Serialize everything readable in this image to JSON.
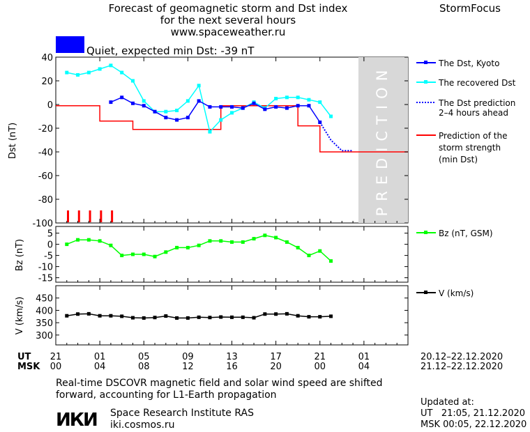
{
  "header": {
    "title_line1": "Forecast of geomagnetic storm and Dst index",
    "title_line2": "for the next several hours",
    "url": "www.spaceweather.ru",
    "brand": "StormFocus"
  },
  "status": {
    "label": "Quiet, expected min Dst: -39 nT",
    "color": "#0000ff"
  },
  "colors": {
    "dst_kyoto": "#0000ff",
    "dst_recovered": "#00ffff",
    "dst_prediction": "#0000ff",
    "storm_strength": "#ff0000",
    "bz": "#00ff00",
    "v": "#000000",
    "prediction_band": "#d8d8d8",
    "tick_marks": "#ff0000"
  },
  "prediction_label": "PREDICTION",
  "time_axis": {
    "ut_label": "UT",
    "msk_label": "MSK",
    "ut_ticks": [
      "21",
      "01",
      "05",
      "09",
      "13",
      "17",
      "21",
      "01"
    ],
    "msk_ticks": [
      "00",
      "04",
      "08",
      "12",
      "16",
      "20",
      "00",
      "04"
    ],
    "ut_range": "20.12–22.12.2020",
    "msk_range": "21.12–22.12.2020"
  },
  "chart_data": [
    {
      "type": "line",
      "ylabel": "Dst (nT)",
      "ylim": [
        -100,
        40
      ],
      "yticks": [
        40,
        20,
        0,
        -20,
        -40,
        -60,
        -80,
        -100
      ],
      "x_hours_from_start": [
        0,
        32
      ],
      "series": [
        {
          "name": "The Dst, Kyoto",
          "x": [
            5,
            6,
            7,
            8,
            9,
            10,
            11,
            12,
            13,
            14,
            15,
            16,
            17,
            18,
            19,
            20,
            21,
            22,
            23,
            24
          ],
          "y": [
            2,
            6,
            1,
            -1,
            -6,
            -11,
            -13,
            -11,
            3,
            -2,
            -2,
            -2,
            -3,
            1,
            -4,
            -2,
            -3,
            -1,
            -1,
            -15
          ]
        },
        {
          "name": "The recovered Dst",
          "x": [
            1,
            2,
            3,
            4,
            5,
            6,
            7,
            8,
            9,
            10,
            11,
            12,
            13,
            14,
            15,
            16,
            17,
            18,
            19,
            20,
            21,
            22,
            23,
            24,
            25
          ],
          "y": [
            27,
            25,
            27,
            30,
            33,
            27,
            20,
            3,
            -6,
            -6,
            -5,
            3,
            16,
            -23,
            -13,
            -7,
            -3,
            2,
            -3,
            5,
            6,
            6,
            4,
            2,
            -10
          ]
        },
        {
          "name": "The Dst prediction 2–4 hours ahead",
          "x": [
            24,
            25,
            26,
            27
          ],
          "y": [
            -15,
            -30,
            -39,
            -39
          ]
        },
        {
          "name": "Prediction of the storm strength (min Dst)",
          "x": [
            0,
            4,
            4,
            7,
            7,
            8,
            8,
            15,
            15,
            21,
            21,
            22,
            22,
            24,
            24,
            28,
            28,
            32
          ],
          "y": [
            -1,
            -1,
            -14,
            -14,
            -21,
            -21,
            -21,
            -21,
            -1,
            -1,
            -1,
            -1,
            -18,
            -18,
            -40,
            -40,
            -40,
            -40
          ]
        }
      ],
      "storm_marks_x": [
        0,
        1,
        2,
        3,
        4
      ]
    },
    {
      "type": "line",
      "ylabel": "Bz (nT)",
      "ylim": [
        -17,
        8
      ],
      "yticks": [
        5,
        0,
        -5,
        -10,
        -15
      ],
      "series": [
        {
          "name": "Bz (nT, GSM)",
          "x": [
            1,
            2,
            3,
            4,
            5,
            6,
            7,
            8,
            9,
            10,
            11,
            12,
            13,
            14,
            15,
            16,
            17,
            18,
            19,
            20,
            21,
            22,
            23,
            24,
            25
          ],
          "y": [
            0,
            2,
            2,
            1.5,
            -0.5,
            -5,
            -4.5,
            -4.5,
            -5.5,
            -3.5,
            -1.5,
            -1.5,
            -0.5,
            1.5,
            1.5,
            1,
            1,
            2.5,
            4,
            3,
            1,
            -1.5,
            -5,
            -3,
            -7.5
          ]
        }
      ]
    },
    {
      "type": "line",
      "ylabel": "V (km/s)",
      "ylim": [
        260,
        500
      ],
      "yticks": [
        450,
        400,
        350,
        300
      ],
      "series": [
        {
          "name": "V (km/s)",
          "x": [
            1,
            2,
            3,
            4,
            5,
            6,
            7,
            8,
            9,
            10,
            11,
            12,
            13,
            14,
            15,
            16,
            17,
            18,
            19,
            20,
            21,
            22,
            23,
            24,
            25
          ],
          "y": [
            378,
            385,
            386,
            378,
            378,
            376,
            370,
            369,
            371,
            377,
            369,
            369,
            372,
            371,
            373,
            372,
            372,
            370,
            385,
            385,
            386,
            378,
            374,
            374,
            376
          ]
        }
      ]
    }
  ],
  "legend": {
    "kyoto": "The Dst, Kyoto",
    "recovered": "The recovered Dst",
    "pred_line1": "The Dst prediction",
    "pred_line2": "2–4 hours ahead",
    "storm_line1": "Prediction of the",
    "storm_line2": "storm strength",
    "storm_line3": "(min Dst)",
    "bz": "Bz (nT, GSM)",
    "v": "V (km/s)"
  },
  "footer": {
    "note_line1": "Real-time DSCOVR magnetic field and solar wind speed are shifted",
    "note_line2": "forward, accounting for L1-Earth propagation",
    "org_logo": "ИКИ",
    "org_name": "Space Research Institute RAS",
    "org_url": "iki.cosmos.ru",
    "updated_label": "Updated at:",
    "updated_ut": "UT   21:05, 21.12.2020",
    "updated_msk": "MSK 00:05, 22.12.2020"
  }
}
